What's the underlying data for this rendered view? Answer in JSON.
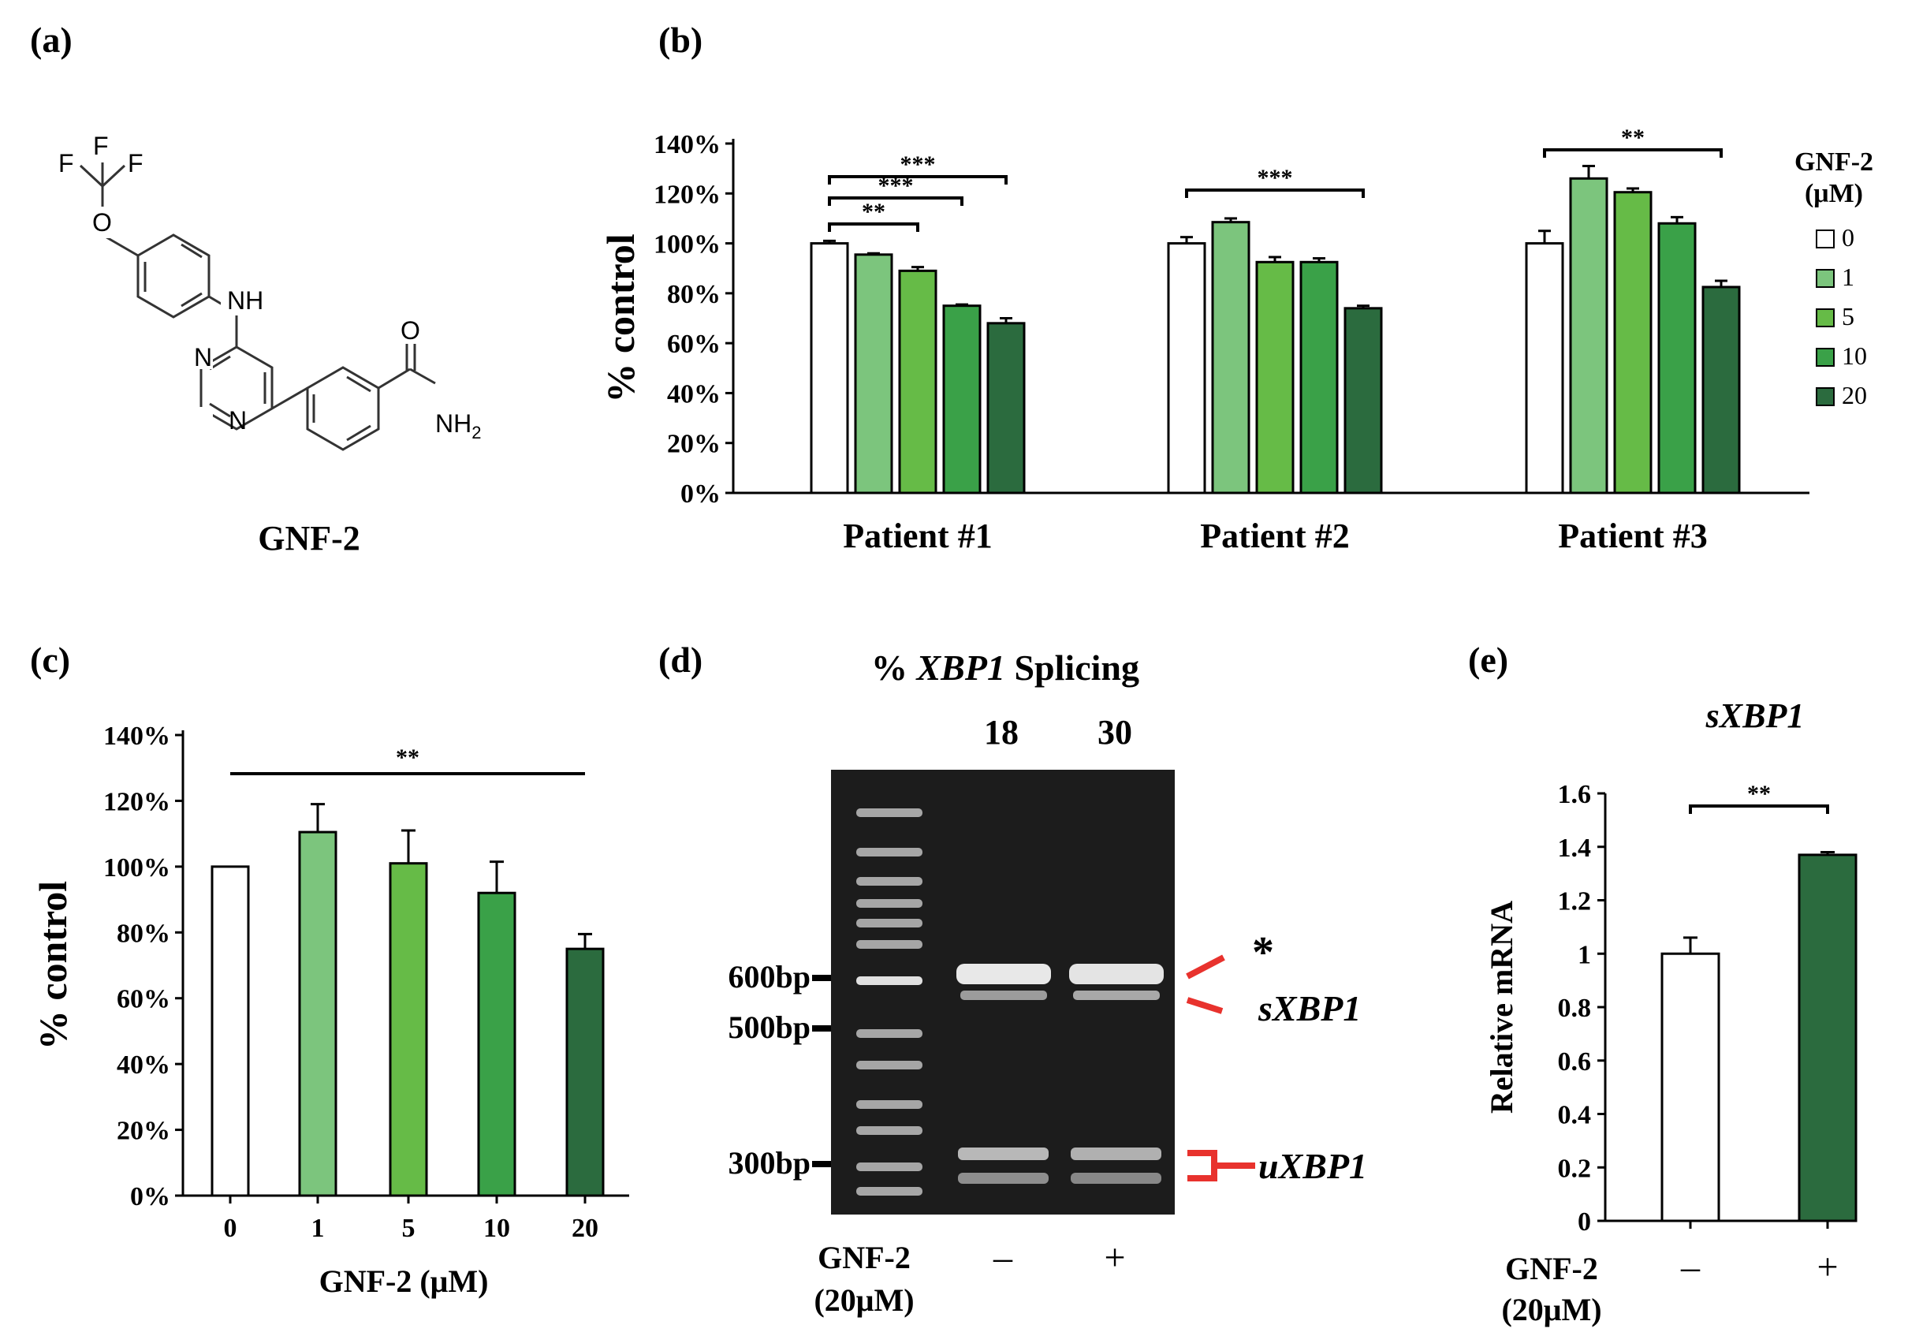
{
  "panel_labels": [
    "(a)",
    "(b)",
    "(c)",
    "(d)",
    "(e)"
  ],
  "colors": {
    "dose_0": "#ffffff",
    "dose_1": "#7cc57d",
    "dose_5": "#66bb47",
    "dose_10": "#3aa148",
    "dose_20": "#2b6b3e",
    "gel_bg": "#1c1c1c",
    "annotation_red": "#e8322d"
  },
  "panel_a": {
    "compound_name": "GNF-2",
    "atoms": {
      "f1": "F",
      "f2": "F",
      "f3": "F",
      "o": "O",
      "nh": "NH",
      "n1": "N",
      "n2": "N",
      "o2": "O",
      "nh2": "NH",
      "nh2_sub": "2"
    }
  },
  "chart_data": [
    {
      "id": "b",
      "type": "bar",
      "categories": [
        "Patient #1",
        "Patient #2",
        "Patient #3"
      ],
      "ylabel": "% control",
      "ylim": [
        0,
        140
      ],
      "yticks": [
        "0%",
        "20%",
        "40%",
        "60%",
        "80%",
        "100%",
        "120%",
        "140%"
      ],
      "legend_title": [
        "GNF-2",
        "(μM)"
      ],
      "legend_position": "right",
      "series": [
        {
          "name": "0",
          "values": [
            100,
            100,
            100
          ],
          "errors": [
            1,
            2.5,
            5
          ]
        },
        {
          "name": "1",
          "values": [
            95.5,
            108.5,
            126
          ],
          "errors": [
            0.5,
            1.5,
            5
          ]
        },
        {
          "name": "5",
          "values": [
            89,
            92.5,
            120.5
          ],
          "errors": [
            1.5,
            2,
            1.5
          ]
        },
        {
          "name": "10",
          "values": [
            75,
            92.5,
            108
          ],
          "errors": [
            0.5,
            1.5,
            2.5
          ]
        },
        {
          "name": "20",
          "values": [
            68,
            74,
            82.5
          ],
          "errors": [
            2,
            1,
            2.5
          ]
        }
      ],
      "significance": [
        {
          "label": "**",
          "group": 0,
          "from": 0,
          "to": 2
        },
        {
          "label": "***",
          "group": 0,
          "from": 0,
          "to": 3
        },
        {
          "label": "***",
          "group": 0,
          "from": 0,
          "to": 4
        },
        {
          "label": "***",
          "group": 1,
          "from": 0,
          "to": 4
        },
        {
          "label": "**",
          "group": 2,
          "from": 0,
          "to": 4
        }
      ]
    },
    {
      "id": "c",
      "type": "bar",
      "categories": [
        "0",
        "1",
        "5",
        "10",
        "20"
      ],
      "values": [
        100,
        110.5,
        101,
        92,
        75
      ],
      "errors": [
        0,
        8.5,
        10,
        9.5,
        4.5
      ],
      "xlabel": "GNF-2 (μM)",
      "ylabel": "% control",
      "ylim": [
        0,
        140
      ],
      "yticks": [
        "0%",
        "20%",
        "40%",
        "60%",
        "80%",
        "100%",
        "120%",
        "140%"
      ],
      "significance": [
        {
          "label": "**",
          "from": 0,
          "to": 4
        }
      ]
    },
    {
      "id": "e",
      "type": "bar",
      "title": "sXBP1",
      "categories": [
        "–",
        "+"
      ],
      "values": [
        1.0,
        1.37
      ],
      "errors": [
        0.06,
        0.01
      ],
      "xlabel_lines": [
        "GNF-2",
        "(20μM)"
      ],
      "ylabel": "Relative mRNA",
      "ylim": [
        0,
        1.6
      ],
      "yticks": [
        "0",
        "0.2",
        "0.4",
        "0.6",
        "0.8",
        "1",
        "1.2",
        "1.4",
        "1.6"
      ],
      "significance": [
        {
          "label": "**",
          "from": 0,
          "to": 1
        }
      ]
    }
  ],
  "panel_d": {
    "title_prefix": "% ",
    "title_gene": "XBP1",
    "title_suffix": " Splicing",
    "percent_values": [
      "18",
      "30"
    ],
    "lane_labels": [
      "–",
      "+"
    ],
    "treatment_lines": [
      "GNF-2",
      "(20μM)"
    ],
    "markers": [
      "600bp",
      "500bp",
      "300bp"
    ],
    "band_labels": {
      "star": "*",
      "spliced": "sXBP1",
      "unspliced": "uXBP1"
    }
  }
}
